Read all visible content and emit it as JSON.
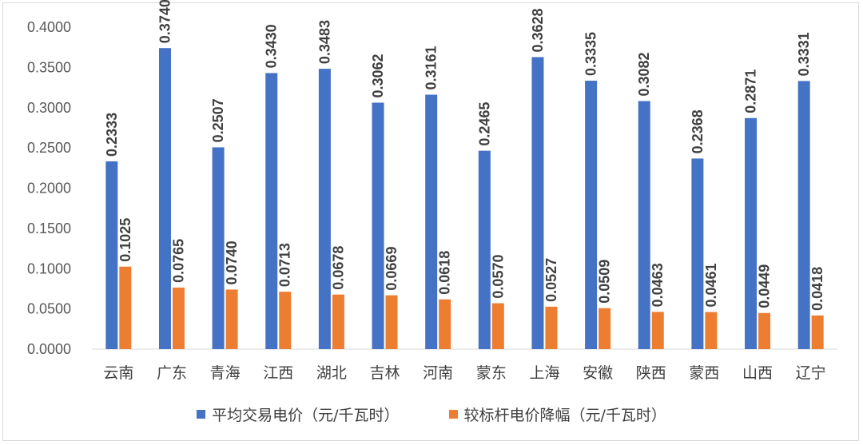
{
  "chart_data": {
    "type": "bar",
    "categories": [
      "云南",
      "广东",
      "青海",
      "江西",
      "湖北",
      "吉林",
      "河南",
      "蒙东",
      "上海",
      "安徽",
      "陕西",
      "蒙西",
      "山西",
      "辽宁"
    ],
    "series": [
      {
        "name": "平均交易电价（元/千瓦时）",
        "color": "#4472c4",
        "values": [
          0.2333,
          0.374,
          0.2507,
          0.343,
          0.3483,
          0.3062,
          0.3161,
          0.2465,
          0.3628,
          0.3335,
          0.3082,
          0.2368,
          0.2871,
          0.3331
        ],
        "labels": [
          "0.2333",
          "0.3740",
          "0.2507",
          "0.3430",
          "0.3483",
          "0.3062",
          "0.3161",
          "0.2465",
          "0.3628",
          "0.3335",
          "0.3082",
          "0.2368",
          "0.2871",
          "0.3331"
        ]
      },
      {
        "name": "较标杆电价降幅（元/千瓦时）",
        "color": "#ed7d31",
        "values": [
          0.1025,
          0.0765,
          0.074,
          0.0713,
          0.0678,
          0.0669,
          0.0618,
          0.057,
          0.0527,
          0.0509,
          0.0463,
          0.0461,
          0.0449,
          0.0418
        ],
        "labels": [
          "0.1025",
          "0.0765",
          "0.0740",
          "0.0713",
          "0.0678",
          "0.0669",
          "0.0618",
          "0.0570",
          "0.0527",
          "0.0509",
          "0.0463",
          "0.0461",
          "0.0449",
          "0.0418"
        ]
      }
    ],
    "yticks": [
      "0.0000",
      "0.0500",
      "0.1000",
      "0.1500",
      "0.2000",
      "0.2500",
      "0.3000",
      "0.3500",
      "0.4000"
    ],
    "ylim": [
      0,
      0.4
    ],
    "grid": false,
    "legend": "bottom"
  }
}
